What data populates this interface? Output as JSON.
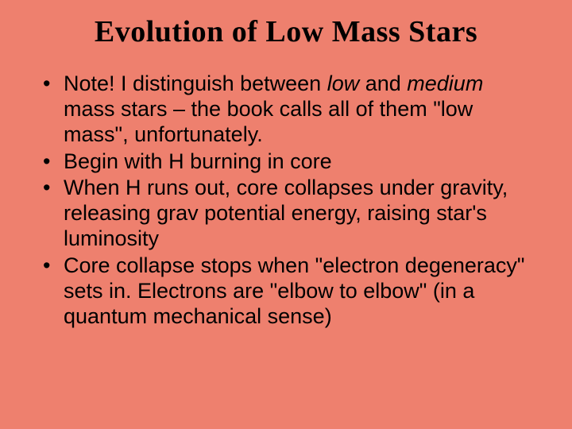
{
  "slide": {
    "background_color": "#ee806e",
    "text_color": "#000000",
    "title": {
      "text": "Evolution of Low Mass Stars",
      "font_family": "Comic Sans MS",
      "font_weight": "bold",
      "font_size_pt": 38,
      "align": "center"
    },
    "body_font_size_pt": 27,
    "bullets": [
      {
        "runs": [
          {
            "text": "Note! I distinguish between ",
            "italic": false
          },
          {
            "text": "low",
            "italic": true
          },
          {
            "text": " and ",
            "italic": false
          },
          {
            "text": "medium",
            "italic": true
          },
          {
            "text": " mass stars – the book calls all of them \"low mass\", unfortunately.",
            "italic": false
          }
        ]
      },
      {
        "runs": [
          {
            "text": "Begin with H burning in core",
            "italic": false
          }
        ]
      },
      {
        "runs": [
          {
            "text": "When H runs out, core collapses under gravity, releasing grav potential energy, raising star's luminosity",
            "italic": false
          }
        ]
      },
      {
        "runs": [
          {
            "text": "Core collapse stops when \"electron degeneracy\" sets in. Electrons are \"elbow to elbow\" (in a quantum mechanical sense)",
            "italic": false
          }
        ]
      }
    ]
  }
}
